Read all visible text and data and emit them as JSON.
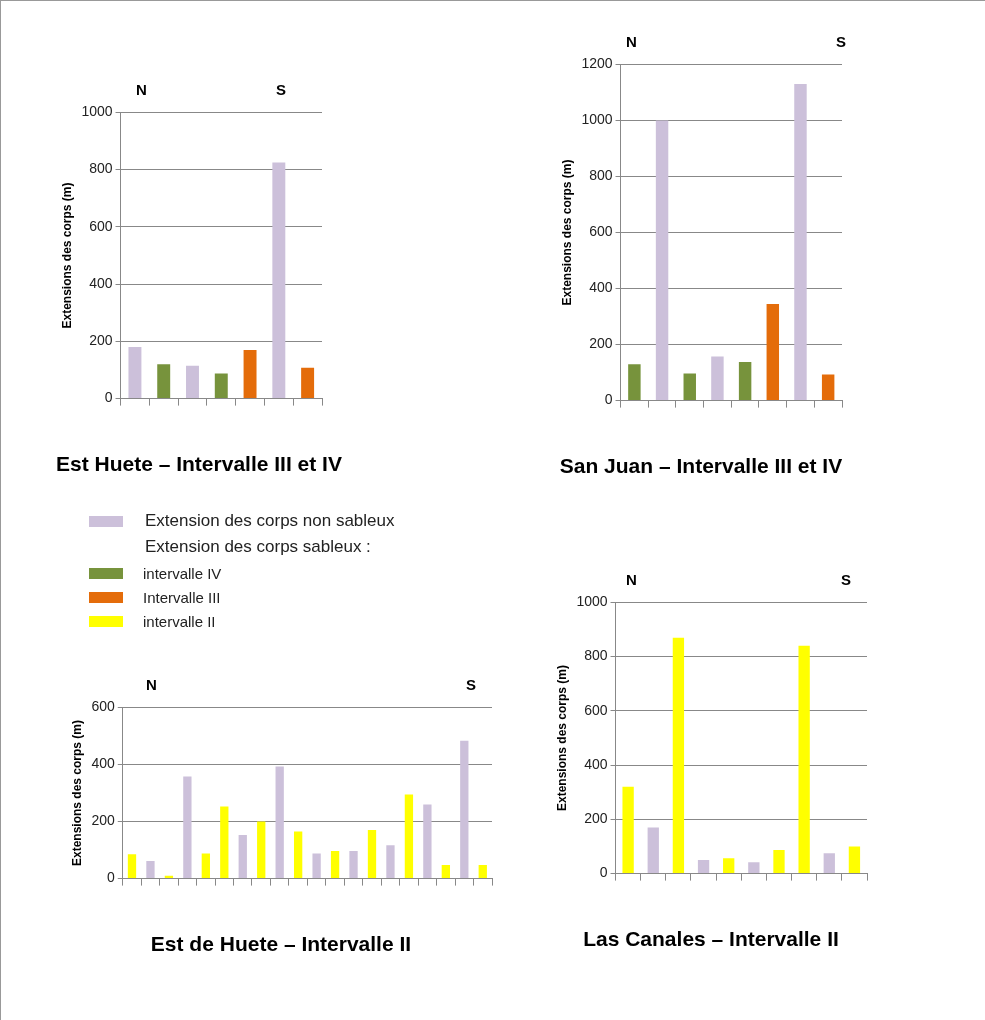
{
  "chart_data": [
    {
      "type": "bar",
      "title": "Est Huete – Intervalle III et IV",
      "ylabel": "Extensions des corps (m)",
      "annotations": [
        "N",
        "S"
      ],
      "categories": [
        null,
        null,
        null,
        null,
        null,
        null,
        null
      ],
      "values": [
        180,
        120,
        115,
        88,
        170,
        825,
        108
      ],
      "colors": [
        "#ccc0da",
        "#77933c",
        "#ccc0da",
        "#77933c",
        "#e46c0a",
        "#ccc0da",
        "#e46c0a"
      ],
      "ylim": [
        0,
        1000
      ],
      "yticks": [
        0,
        200,
        400,
        600,
        800,
        1000
      ],
      "grid": "y"
    },
    {
      "type": "bar",
      "title": "San Juan – Intervalle III et IV",
      "ylabel": "Extensions des corps (m)",
      "annotations": [
        "N",
        "S"
      ],
      "categories": [
        null,
        null,
        null,
        null,
        null,
        null,
        null,
        null
      ],
      "values": [
        130,
        1000,
        97,
        157,
        138,
        345,
        1130,
        93
      ],
      "colors": [
        "#77933c",
        "#ccc0da",
        "#77933c",
        "#ccc0da",
        "#77933c",
        "#e46c0a",
        "#ccc0da",
        "#e46c0a"
      ],
      "ylim": [
        0,
        1200
      ],
      "yticks": [
        0,
        200,
        400,
        600,
        800,
        1000,
        1200
      ],
      "grid": "y"
    },
    {
      "type": "other",
      "annotations": [
        "Extension des corps sableux :"
      ],
      "series": [
        {
          "name": "Extension des corps non sableux",
          "color": "#ccc0da"
        },
        {
          "name": "intervalle IV",
          "color": "#77933c"
        },
        {
          "name": "Intervalle III",
          "color": "#e46c0a"
        },
        {
          "name": "intervalle II",
          "color": "#ffff00"
        }
      ]
    },
    {
      "type": "bar",
      "title": "Las Canales – Intervalle II",
      "ylabel": "Extensions des corps (m)",
      "annotations": [
        "N",
        "S"
      ],
      "categories": [
        null,
        null,
        null,
        null,
        null,
        null,
        null,
        null,
        null,
        null
      ],
      "values": [
        320,
        170,
        870,
        50,
        57,
        42,
        87,
        840,
        75,
        100
      ],
      "colors": [
        "#ffff00",
        "#ccc0da",
        "#ffff00",
        "#ccc0da",
        "#ffff00",
        "#ccc0da",
        "#ffff00",
        "#ffff00",
        "#ccc0da",
        "#ffff00"
      ],
      "ylim": [
        0,
        1000
      ],
      "yticks": [
        0,
        200,
        400,
        600,
        800,
        1000
      ],
      "grid": "y"
    },
    {
      "type": "bar",
      "title": "Est de Huete – Intervalle II",
      "ylabel": "Extensions des corps (m)",
      "annotations": [
        "N",
        "S"
      ],
      "categories": [
        null,
        null,
        null,
        null,
        null,
        null,
        null,
        null,
        null,
        null,
        null,
        null,
        null,
        null,
        null,
        null,
        null,
        null,
        null,
        null
      ],
      "values": [
        85,
        62,
        10,
        358,
        88,
        253,
        153,
        200,
        393,
        165,
        88,
        97,
        97,
        170,
        117,
        295,
        260,
        48,
        483,
        48
      ],
      "colors": [
        "#ffff00",
        "#ccc0da",
        "#ffff00",
        "#ccc0da",
        "#ffff00",
        "#ffff00",
        "#ccc0da",
        "#ffff00",
        "#ccc0da",
        "#ffff00",
        "#ccc0da",
        "#ffff00",
        "#ccc0da",
        "#ffff00",
        "#ccc0da",
        "#ffff00",
        "#ccc0da",
        "#ffff00",
        "#ccc0da",
        "#ffff00"
      ],
      "ylim": [
        0,
        600
      ],
      "yticks": [
        0,
        200,
        400,
        600
      ],
      "grid": "y"
    }
  ]
}
